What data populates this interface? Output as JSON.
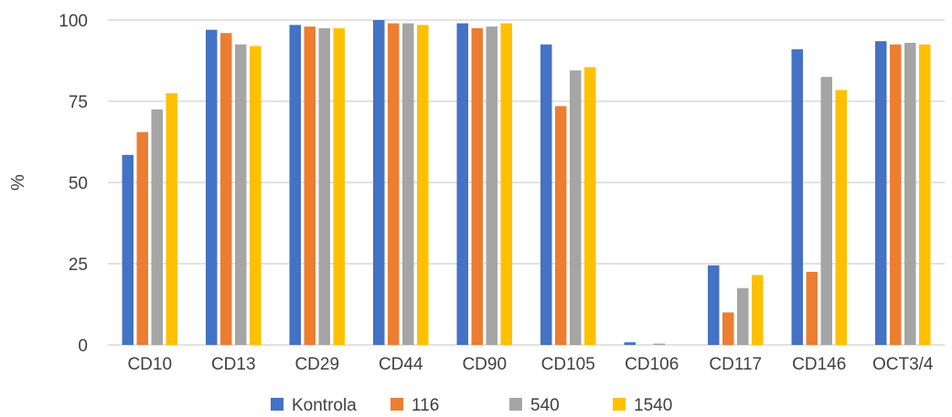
{
  "chart_data": {
    "type": "bar",
    "ylabel": "%",
    "ylim": [
      0,
      100
    ],
    "yticks": [
      "0",
      "25",
      "50",
      "75",
      "100"
    ],
    "grid": true,
    "legend_position": "bottom",
    "categories": [
      "CD10",
      "CD13",
      "CD29",
      "CD44",
      "CD90",
      "CD105",
      "CD106",
      "CD117",
      "CD146",
      "OCT3/4"
    ],
    "series": [
      {
        "name": "Kontrola",
        "color": "#4472C4",
        "values": [
          58.5,
          97,
          98.5,
          100,
          99,
          92.5,
          0.8,
          24.5,
          91,
          93.5
        ]
      },
      {
        "name": "116",
        "color": "#ED7D31",
        "values": [
          65.5,
          96,
          98,
          99,
          97.5,
          73.5,
          0,
          10,
          22.5,
          92.5
        ]
      },
      {
        "name": "540",
        "color": "#A5A5A5",
        "values": [
          72.5,
          92.5,
          97.5,
          99,
          98,
          84.5,
          0.4,
          17.5,
          82.5,
          93
        ]
      },
      {
        "name": "1540",
        "color": "#FFC000",
        "values": [
          77.5,
          92,
          97.5,
          98.5,
          99,
          85.5,
          0,
          21.5,
          78.5,
          92.5
        ]
      }
    ]
  }
}
